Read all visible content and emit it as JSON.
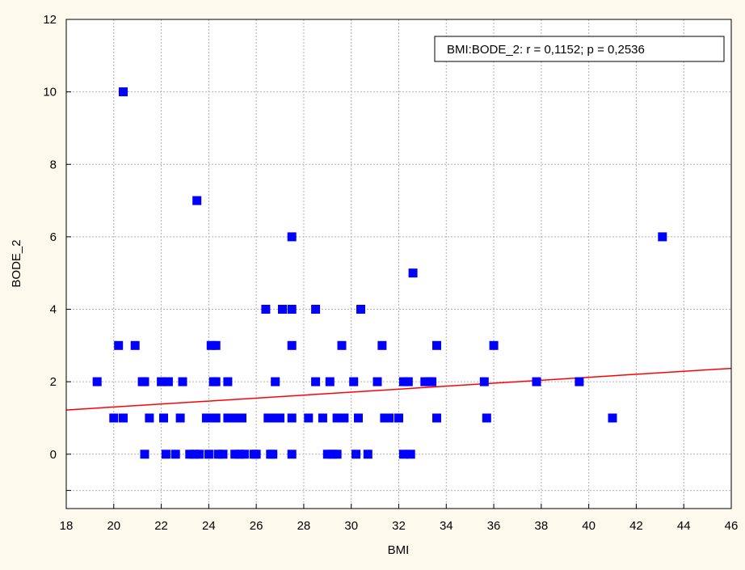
{
  "chart_data": {
    "type": "scatter",
    "title": "",
    "xlabel": "BMI",
    "ylabel": "BODE_2",
    "xlim": [
      18,
      46
    ],
    "ylim": [
      -1.5,
      12
    ],
    "x_ticks": [
      18,
      20,
      22,
      24,
      26,
      28,
      30,
      32,
      34,
      36,
      38,
      40,
      42,
      44,
      46
    ],
    "y_ticks": [
      0,
      2,
      4,
      6,
      8,
      10,
      12
    ],
    "grid": true,
    "legend": {
      "text": "BMI:BODE_2:   r = 0,1152; p = 0,2536",
      "placement": "top-right"
    },
    "colors": {
      "points": "#0000ff",
      "regression": "#ff0000",
      "plot_background": "#ffffff",
      "page_background": "#fdf9ec"
    },
    "regression_line": {
      "x": [
        18,
        46
      ],
      "y": [
        1.22,
        2.37
      ]
    },
    "series": [
      {
        "marker": "square",
        "points": [
          [
            19.3,
            2
          ],
          [
            20.0,
            1
          ],
          [
            20.2,
            3
          ],
          [
            20.4,
            10
          ],
          [
            20.4,
            1
          ],
          [
            20.9,
            3
          ],
          [
            21.2,
            2
          ],
          [
            21.3,
            0
          ],
          [
            21.3,
            2
          ],
          [
            21.5,
            1
          ],
          [
            22.0,
            2
          ],
          [
            22.1,
            1
          ],
          [
            22.2,
            0
          ],
          [
            22.3,
            2
          ],
          [
            22.6,
            0
          ],
          [
            22.8,
            1
          ],
          [
            22.9,
            2
          ],
          [
            23.2,
            0
          ],
          [
            23.4,
            0
          ],
          [
            23.5,
            7
          ],
          [
            23.6,
            0
          ],
          [
            23.9,
            1
          ],
          [
            24.0,
            0
          ],
          [
            24.1,
            3
          ],
          [
            24.1,
            1
          ],
          [
            24.2,
            2
          ],
          [
            24.3,
            3
          ],
          [
            24.3,
            2
          ],
          [
            24.3,
            1
          ],
          [
            24.4,
            0
          ],
          [
            24.6,
            0
          ],
          [
            24.8,
            2
          ],
          [
            24.8,
            1
          ],
          [
            25.0,
            1
          ],
          [
            25.1,
            0
          ],
          [
            25.2,
            1
          ],
          [
            25.3,
            0
          ],
          [
            25.4,
            1
          ],
          [
            25.5,
            0
          ],
          [
            25.9,
            0
          ],
          [
            26.0,
            0
          ],
          [
            26.4,
            4
          ],
          [
            26.5,
            1
          ],
          [
            26.6,
            0
          ],
          [
            26.7,
            0
          ],
          [
            26.8,
            1
          ],
          [
            26.8,
            2
          ],
          [
            27.0,
            1
          ],
          [
            27.1,
            4
          ],
          [
            27.5,
            6
          ],
          [
            27.5,
            4
          ],
          [
            27.5,
            3
          ],
          [
            27.5,
            1
          ],
          [
            27.5,
            0
          ],
          [
            28.2,
            1
          ],
          [
            28.5,
            4
          ],
          [
            28.5,
            2
          ],
          [
            28.8,
            1
          ],
          [
            29.0,
            0
          ],
          [
            29.1,
            2
          ],
          [
            29.2,
            0
          ],
          [
            29.4,
            1
          ],
          [
            29.4,
            0
          ],
          [
            29.6,
            3
          ],
          [
            29.7,
            1
          ],
          [
            30.1,
            2
          ],
          [
            30.2,
            0
          ],
          [
            30.3,
            1
          ],
          [
            30.4,
            4
          ],
          [
            30.7,
            0
          ],
          [
            31.1,
            2
          ],
          [
            31.3,
            3
          ],
          [
            31.4,
            1
          ],
          [
            31.6,
            1
          ],
          [
            32.0,
            1
          ],
          [
            32.2,
            2
          ],
          [
            32.2,
            0
          ],
          [
            32.4,
            2
          ],
          [
            32.5,
            0
          ],
          [
            32.6,
            5
          ],
          [
            33.1,
            2
          ],
          [
            33.3,
            2
          ],
          [
            33.4,
            2
          ],
          [
            33.6,
            3
          ],
          [
            33.6,
            1
          ],
          [
            35.6,
            2
          ],
          [
            35.7,
            1
          ],
          [
            36.0,
            3
          ],
          [
            37.8,
            2
          ],
          [
            39.6,
            2
          ],
          [
            41.0,
            1
          ],
          [
            43.1,
            6
          ]
        ]
      }
    ]
  }
}
